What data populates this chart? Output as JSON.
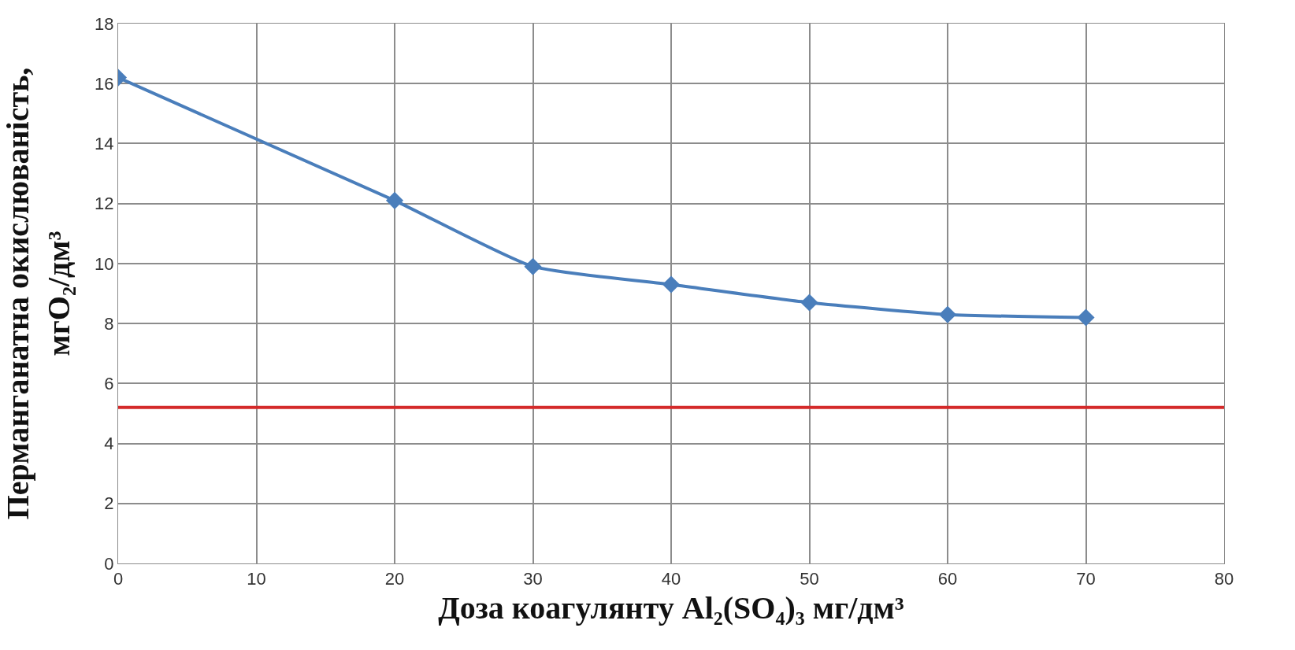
{
  "chart_data": {
    "type": "line",
    "xlabel": "Доза коагулянту Al₂(SO₄)₃ мг/дм³",
    "ylabel": "Перманганатна окислюваність,\nмгO₂/дм³",
    "x": [
      0,
      20,
      30,
      40,
      50,
      60,
      70
    ],
    "series": [
      {
        "color": "#4a7ebb",
        "values": [
          16.2,
          12.1,
          9.9,
          9.3,
          8.7,
          8.3,
          8.2
        ]
      }
    ],
    "xlim": [
      0,
      80
    ],
    "xticks": [
      0,
      10,
      20,
      30,
      40,
      50,
      60,
      70,
      80
    ],
    "ylim": [
      0,
      18
    ],
    "yticks": [
      0,
      2,
      4,
      6,
      8,
      10,
      12,
      14,
      16,
      18
    ],
    "ref_lines": [
      {
        "axis": "y",
        "value": 5.2,
        "color": "#d42a2a"
      }
    ],
    "grid": true,
    "marker": "diamond",
    "line_style": "solid"
  }
}
